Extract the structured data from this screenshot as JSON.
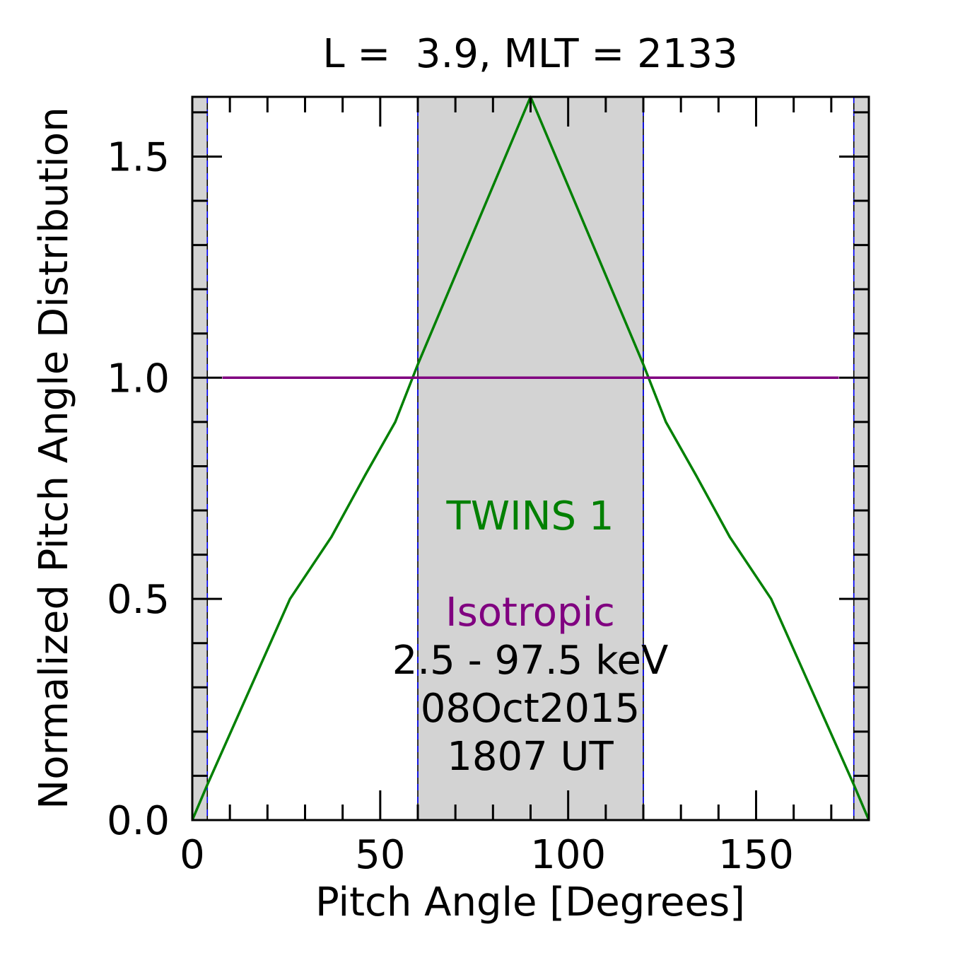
{
  "chart_data": {
    "type": "line",
    "title": "L =  3.9, MLT = 2133",
    "xlabel": "Pitch Angle [Degrees]",
    "ylabel": "Normalized Pitch Angle Distribution",
    "xlim": [
      0,
      180
    ],
    "ylim": [
      0,
      1.635
    ],
    "xticks": [
      0,
      50,
      100,
      150
    ],
    "xtick_labels": [
      "0",
      "50",
      "100",
      "150"
    ],
    "yticks": [
      0,
      0.5,
      1.0,
      1.5
    ],
    "ytick_labels": [
      "0.0",
      "0.5",
      "1.0",
      "1.5"
    ],
    "grid": false,
    "shaded_regions": [
      [
        0,
        4
      ],
      [
        60,
        120
      ],
      [
        176,
        180
      ]
    ],
    "vlines": [
      4,
      60,
      120,
      176
    ],
    "series": [
      {
        "name": "TWINS 1",
        "color": "#008000",
        "x": [
          0,
          4,
          26,
          37,
          46,
          54,
          60,
          90,
          120,
          126,
          134,
          143,
          154,
          176,
          180
        ],
        "y": [
          0.0,
          0.08,
          0.5,
          0.64,
          0.78,
          0.9,
          1.03,
          1.635,
          1.03,
          0.9,
          0.78,
          0.64,
          0.5,
          0.08,
          0.0
        ]
      },
      {
        "name": "Isotropic",
        "color": "#800080",
        "x": [
          8,
          172
        ],
        "y": [
          1.0,
          1.0
        ]
      }
    ],
    "annotations": [
      {
        "text": "TWINS 1",
        "color": "#008000"
      },
      {
        "text": "Isotropic",
        "color": "#800080"
      },
      {
        "text": "2.5 - 97.5 keV",
        "color": "#000000"
      },
      {
        "text": "08Oct2015",
        "color": "#000000"
      },
      {
        "text": "1807 UT",
        "color": "#000000"
      }
    ]
  }
}
